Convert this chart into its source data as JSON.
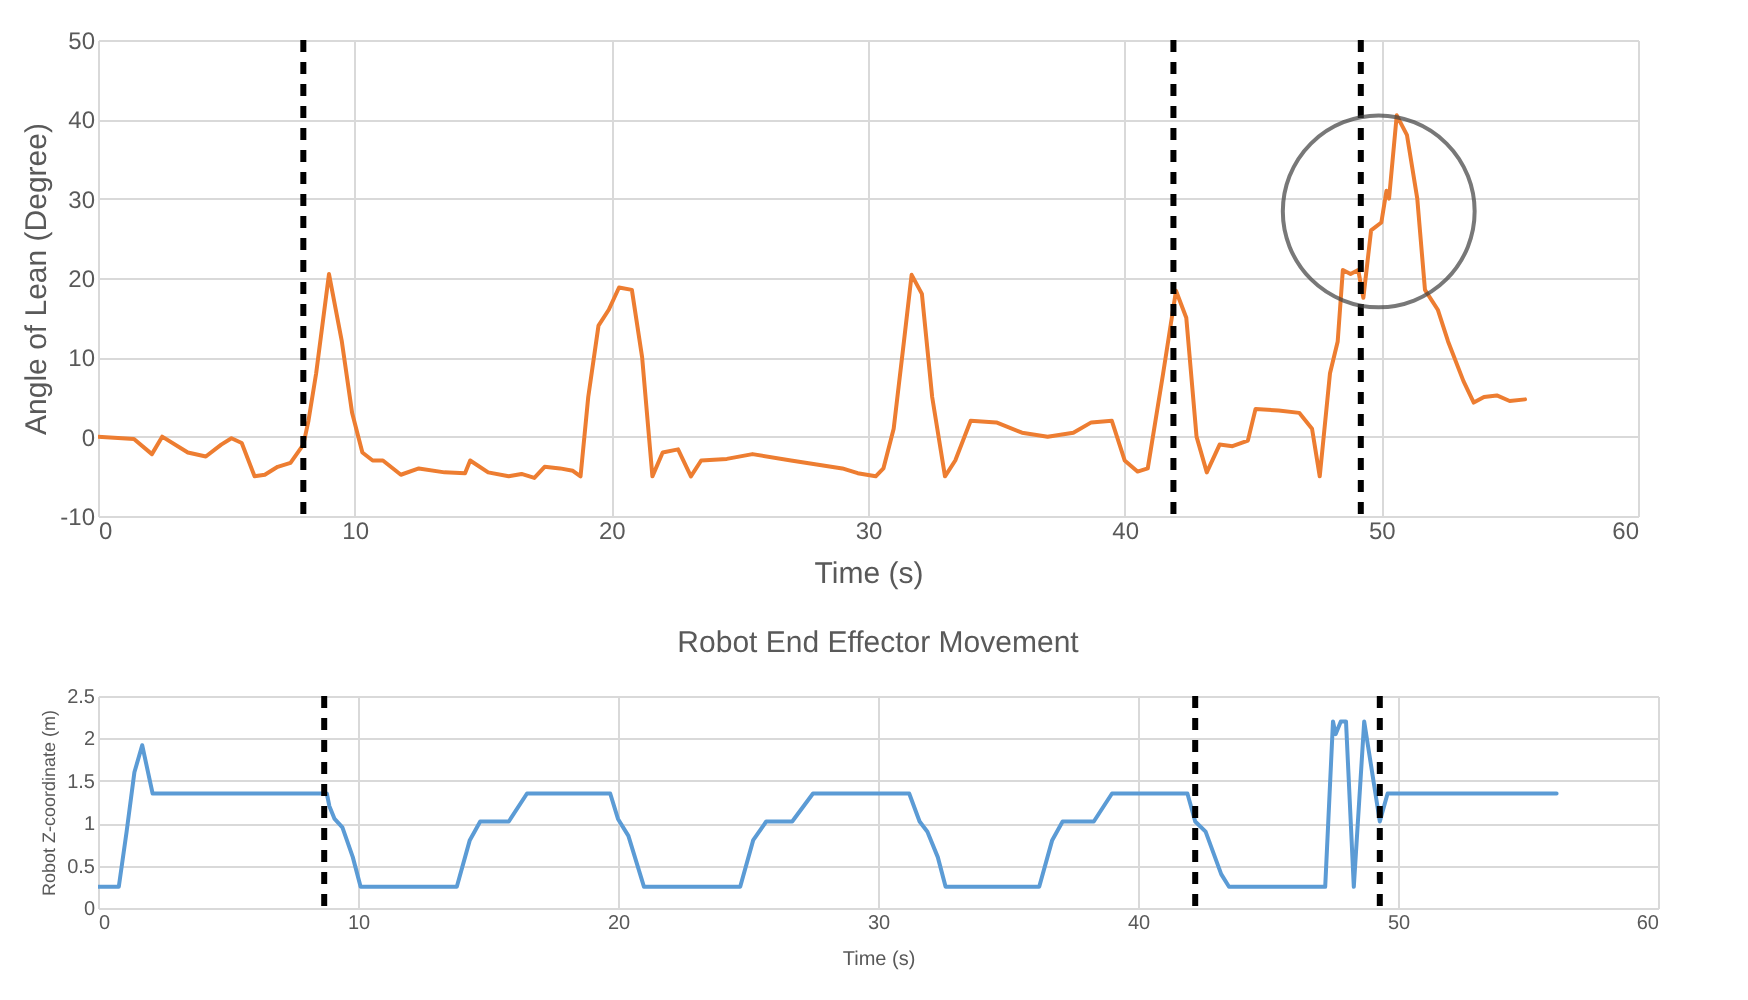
{
  "chart_data": [
    {
      "type": "line",
      "xlabel": "Time (s)",
      "ylabel": "Angle of Lean (Degree)",
      "xlim": [
        0,
        60
      ],
      "xticks": [
        0,
        10,
        20,
        30,
        40,
        50,
        60
      ],
      "ylim": [
        -10,
        50
      ],
      "yticks": [
        -10,
        0,
        10,
        20,
        30,
        40,
        50
      ],
      "grid": true,
      "series": [
        {
          "color": "#ed7d31",
          "x": [
            0,
            1.4,
            2.1,
            2.5,
            3.5,
            4.2,
            4.8,
            5.2,
            5.6,
            6.1,
            6.5,
            7,
            7.5,
            8,
            8.2,
            8.5,
            9,
            9.5,
            9.9,
            10.3,
            10.7,
            11.1,
            11.8,
            12.5,
            13.5,
            14.3,
            14.5,
            15.2,
            16,
            16.5,
            17,
            17.4,
            18,
            18.5,
            18.8,
            19.1,
            19.5,
            19.9,
            20.3,
            20.8,
            21.2,
            21.6,
            22,
            22.6,
            23.1,
            23.5,
            24.5,
            25.5,
            27,
            28,
            29,
            29.6,
            30.3,
            30.6,
            31,
            31.4,
            31.7,
            32.1,
            32.5,
            33,
            33.4,
            34,
            35,
            36,
            37,
            38,
            38.7,
            39.5,
            40,
            40.5,
            40.9,
            41.5,
            42,
            42.4,
            42.8,
            43.2,
            43.7,
            44.2,
            44.8,
            45.1,
            46,
            46.8,
            47.3,
            47.6,
            48,
            48.3,
            48.5,
            48.8,
            49.1,
            49.3,
            49.6,
            50,
            50.2,
            50.3,
            50.6,
            51,
            51.4,
            51.7,
            52.2,
            52.6,
            53.2,
            53.6,
            54,
            54.5,
            55,
            55.6
          ],
          "values": [
            0,
            -0.3,
            -2.2,
            0,
            -2,
            -2.5,
            -1,
            -0.2,
            -0.8,
            -5,
            -4.8,
            -3.8,
            -3.3,
            -1,
            2,
            8,
            20.5,
            12,
            3,
            -2,
            -3,
            -3,
            -4.8,
            -4,
            -4.5,
            -4.6,
            -3,
            -4.5,
            -5,
            -4.7,
            -5.2,
            -3.8,
            -4,
            -4.3,
            -5,
            5,
            14,
            16,
            18.8,
            18.5,
            10,
            -5,
            -2,
            -1.6,
            -5,
            -3,
            -2.8,
            -2.2,
            -3,
            -3.5,
            -4,
            -4.6,
            -5,
            -4,
            1,
            12,
            20.4,
            18,
            5,
            -5,
            -3,
            2,
            1.8,
            0.5,
            0,
            0.5,
            1.8,
            2,
            -3,
            -4.4,
            -4,
            8,
            18.4,
            15,
            0,
            -4.5,
            -1,
            -1.2,
            -0.5,
            3.5,
            3.3,
            3,
            1,
            -5,
            8,
            12,
            21,
            20.5,
            21,
            17.5,
            26,
            27,
            31,
            30,
            40.5,
            38,
            30,
            18.5,
            16,
            12,
            7,
            4.3,
            5,
            5.2,
            4.5,
            4.7
          ]
        }
      ],
      "ref_lines": [
        {
          "axis": "x",
          "value": 8,
          "color": "#000000",
          "line_style": "dashed"
        },
        {
          "axis": "x",
          "value": 41.9,
          "color": "#000000",
          "line_style": "dashed"
        },
        {
          "axis": "x",
          "value": 49.2,
          "color": "#000000",
          "line_style": "dashed"
        }
      ]
    },
    {
      "type": "line",
      "title": "Robot End Effector Movement",
      "xlabel": "Time (s)",
      "ylabel": "Robot Z-coordinate (m)",
      "xlim": [
        0,
        60
      ],
      "xticks": [
        0,
        10,
        20,
        30,
        40,
        50,
        60
      ],
      "ylim": [
        0,
        2.5
      ],
      "yticks": [
        0,
        0.5,
        1,
        1.5,
        2,
        2.5
      ],
      "grid": true,
      "series": [
        {
          "color": "#5b9bd5",
          "x": [
            0,
            0.8,
            1.1,
            1.4,
            1.7,
            2.1,
            8.8,
            8.9,
            9.1,
            9.4,
            9.8,
            10.1,
            13.8,
            14.3,
            14.7,
            15.8,
            16.5,
            19.7,
            20,
            20.4,
            21,
            24.7,
            25.2,
            25.7,
            26.7,
            27.5,
            31.2,
            31.6,
            31.9,
            32.3,
            32.6,
            36.2,
            36.7,
            37.1,
            38.3,
            39,
            41.9,
            42.2,
            42.6,
            43.2,
            43.5,
            47.2,
            47.5,
            47.6,
            47.8,
            48,
            48.3,
            48.7,
            49.3,
            49.6,
            56.1
          ],
          "values": [
            0.25,
            0.25,
            0.9,
            1.6,
            1.92,
            1.35,
            1.35,
            1.2,
            1.05,
            0.95,
            0.6,
            0.25,
            0.25,
            0.8,
            1.02,
            1.02,
            1.35,
            1.35,
            1.05,
            0.85,
            0.25,
            0.25,
            0.8,
            1.02,
            1.02,
            1.35,
            1.35,
            1.02,
            0.9,
            0.6,
            0.25,
            0.25,
            0.8,
            1.02,
            1.02,
            1.35,
            1.35,
            1.02,
            0.9,
            0.4,
            0.25,
            0.25,
            2.2,
            2.05,
            2.2,
            2.2,
            0.25,
            2.2,
            1.02,
            1.35,
            1.35
          ]
        }
      ],
      "ref_lines": [
        {
          "axis": "x",
          "value": 8.7,
          "color": "#000000",
          "line_style": "dashed"
        },
        {
          "axis": "x",
          "value": 42.2,
          "color": "#000000",
          "line_style": "dashed"
        },
        {
          "axis": "x",
          "value": 49.3,
          "color": "#000000",
          "line_style": "dashed"
        }
      ]
    }
  ]
}
